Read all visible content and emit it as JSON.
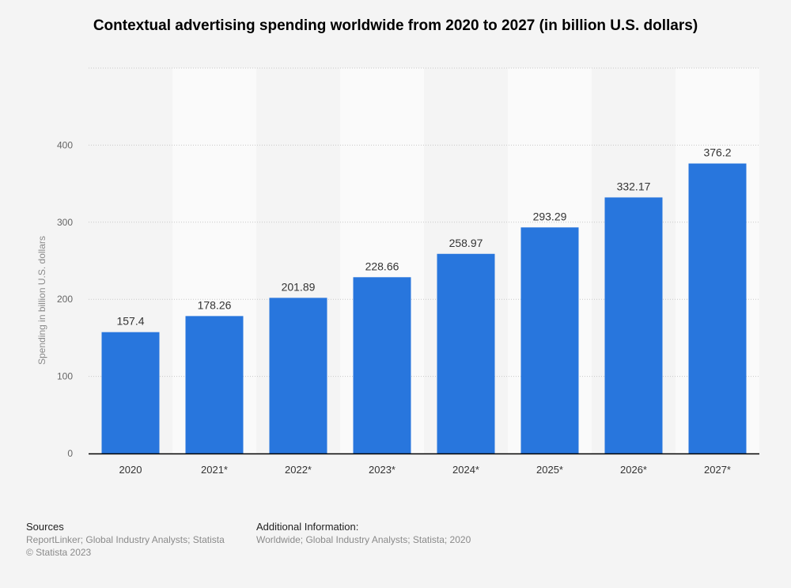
{
  "chart_data": {
    "type": "bar",
    "title": "Contextual advertising spending worldwide from 2020 to 2027 (in billion U.S. dollars)",
    "xlabel": "",
    "ylabel": "Spending in billion U.S. dollars",
    "categories": [
      "2020",
      "2021*",
      "2022*",
      "2023*",
      "2024*",
      "2025*",
      "2026*",
      "2027*"
    ],
    "values": [
      157.4,
      178.26,
      201.89,
      228.66,
      258.97,
      293.29,
      332.17,
      376.2
    ],
    "value_labels": [
      "157.4",
      "178.26",
      "201.89",
      "228.66",
      "258.97",
      "293.29",
      "332.17",
      "376.2"
    ],
    "ylim": [
      0,
      500
    ],
    "yticks": [
      0,
      100,
      200,
      300,
      400
    ],
    "grid": true,
    "bar_color": "#2876dd"
  },
  "footer": {
    "sources_heading": "Sources",
    "sources_text": "ReportLinker; Global Industry Analysts; Statista",
    "copyright": "© Statista 2023",
    "additional_heading": "Additional Information:",
    "additional_text": "Worldwide; Global Industry Analysts; Statista; 2020"
  }
}
